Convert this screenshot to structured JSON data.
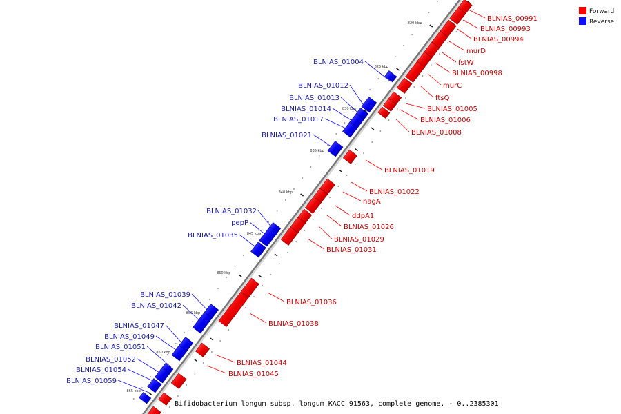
{
  "legend": {
    "forward": {
      "label": "Forward",
      "color": "#ff0000"
    },
    "reverse": {
      "label": "Reverse",
      "color": "#1010ff"
    }
  },
  "caption": "Bifidobacterium longum subsp. longum KACC 91563, complete genome. - 0..2385301",
  "ticks": [
    "820 kbp",
    "825 kbp",
    "830 kbp",
    "835 kbp",
    "840 kbp",
    "845 kbp",
    "850 kbp",
    "855 kbp",
    "860 kbp",
    "865 kbp"
  ],
  "forward_genes": [
    "BLNIAS_00991",
    "BLNIAS_00993",
    "BLNIAS_00994",
    "murD",
    "fstW",
    "BLNIAS_00998",
    "murC",
    "ftsQ",
    "BLNIAS_01005",
    "BLNIAS_01006",
    "BLNIAS_01008",
    "BLNIAS_01019",
    "BLNIAS_01022",
    "nagA",
    "ddpA1",
    "BLNIAS_01026",
    "BLNIAS_01029",
    "BLNIAS_01031",
    "BLNIAS_01036",
    "BLNIAS_01038",
    "BLNIAS_01044",
    "BLNIAS_01045"
  ],
  "reverse_genes": [
    "BLNIAS_01004",
    "BLNIAS_01012",
    "BLNIAS_01013",
    "BLNIAS_01014",
    "BLNIAS_01017",
    "BLNIAS_01021",
    "BLNIAS_01032",
    "pepP",
    "BLNIAS_01035",
    "BLNIAS_01039",
    "BLNIAS_01042",
    "BLNIAS_01047",
    "BLNIAS_01049",
    "BLNIAS_01051",
    "BLNIAS_01052",
    "BLNIAS_01054",
    "BLNIAS_01059"
  ]
}
